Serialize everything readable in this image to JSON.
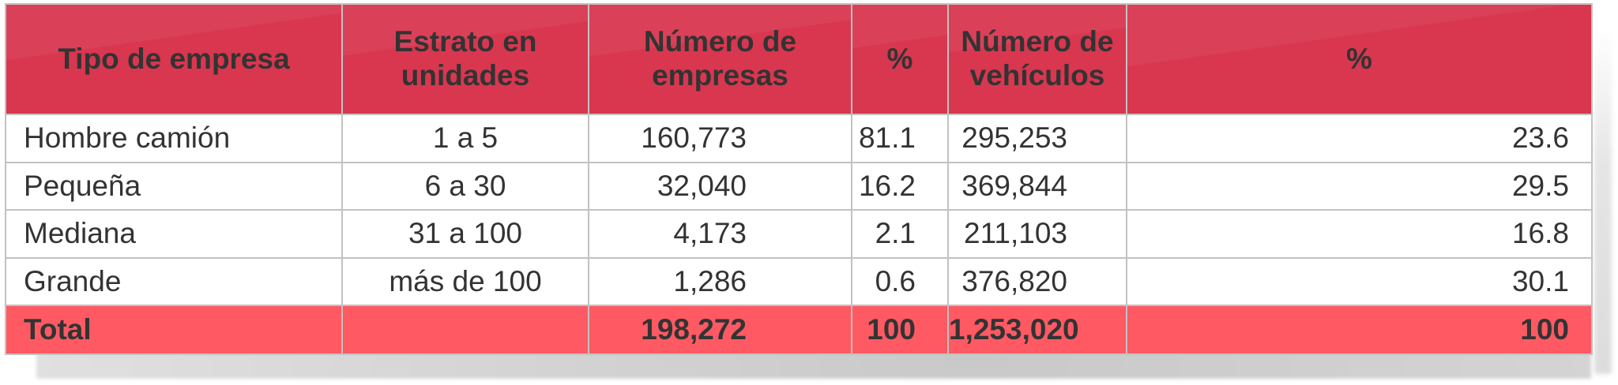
{
  "table": {
    "headers": [
      "Tipo de empresa",
      "Estrato en unidades",
      "Número de empresas",
      "%",
      "Número de vehículos",
      "%"
    ],
    "rows": [
      [
        "Hombre camión",
        "1 a 5",
        "160,773",
        "81.1",
        "295,253",
        "23.6"
      ],
      [
        "Pequeña",
        "6 a 30",
        "32,040",
        "16.2",
        "369,844",
        "29.5"
      ],
      [
        "Mediana",
        "31 a 100",
        "4,173",
        "2.1",
        "211,103",
        "16.8"
      ],
      [
        "Grande",
        "más de 100",
        "1,286",
        "0.6",
        "376,820",
        "30.1"
      ]
    ],
    "total": [
      "Total",
      "",
      "198,272",
      "100",
      "1,253,020",
      "100"
    ]
  },
  "colors": {
    "header_bg": "#d8374f",
    "total_bg": "#ff5a63",
    "header_text": "#ffffff",
    "grid_line": "#c2c2c2"
  }
}
